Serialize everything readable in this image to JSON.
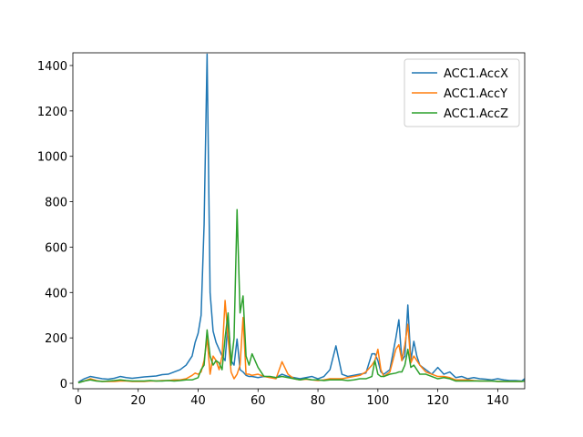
{
  "chart_data": {
    "type": "line",
    "x": [
      0,
      2,
      4,
      6,
      8,
      10,
      12,
      14,
      16,
      18,
      20,
      22,
      24,
      26,
      28,
      30,
      32,
      34,
      36,
      38,
      39,
      40,
      41,
      42,
      43,
      44,
      45,
      46,
      47,
      48,
      49,
      50,
      51,
      52,
      53,
      54,
      55,
      56,
      57,
      58,
      60,
      62,
      64,
      66,
      68,
      70,
      72,
      74,
      76,
      78,
      80,
      82,
      84,
      86,
      88,
      90,
      92,
      94,
      96,
      98,
      99,
      100,
      101,
      102,
      104,
      106,
      107,
      108,
      109,
      110,
      111,
      112,
      113,
      114,
      116,
      118,
      120,
      122,
      124,
      126,
      128,
      130,
      132,
      134,
      136,
      138,
      140,
      142,
      144,
      146,
      148,
      149
    ],
    "series": [
      {
        "name": "ACC1.AccX",
        "color": "#1f77b4",
        "values": [
          5,
          20,
          30,
          25,
          20,
          18,
          22,
          30,
          25,
          22,
          25,
          28,
          30,
          32,
          38,
          40,
          50,
          60,
          80,
          120,
          180,
          220,
          300,
          700,
          1450,
          400,
          230,
          180,
          150,
          120,
          100,
          280,
          100,
          80,
          195,
          60,
          50,
          35,
          30,
          30,
          25,
          30,
          28,
          25,
          40,
          30,
          25,
          20,
          25,
          30,
          20,
          30,
          60,
          165,
          40,
          30,
          35,
          40,
          45,
          130,
          130,
          100,
          50,
          40,
          60,
          200,
          280,
          100,
          120,
          345,
          100,
          185,
          120,
          80,
          60,
          40,
          70,
          40,
          50,
          25,
          30,
          20,
          25,
          20,
          18,
          15,
          20,
          15,
          12,
          12,
          10,
          20
        ]
      },
      {
        "name": "ACC1.AccY",
        "color": "#ff7f0e",
        "values": [
          3,
          10,
          20,
          12,
          8,
          8,
          8,
          10,
          10,
          8,
          8,
          8,
          10,
          10,
          12,
          12,
          15,
          15,
          20,
          35,
          45,
          40,
          50,
          100,
          200,
          40,
          120,
          100,
          60,
          120,
          365,
          200,
          50,
          20,
          40,
          80,
          290,
          40,
          40,
          35,
          40,
          30,
          25,
          20,
          95,
          40,
          20,
          15,
          18,
          15,
          12,
          15,
          20,
          20,
          20,
          25,
          30,
          35,
          50,
          80,
          100,
          150,
          60,
          30,
          50,
          150,
          170,
          100,
          170,
          260,
          90,
          120,
          100,
          80,
          50,
          40,
          30,
          30,
          25,
          15,
          15,
          15,
          12,
          10,
          10,
          10,
          8,
          8,
          8,
          8,
          8,
          10
        ]
      },
      {
        "name": "ACC1.AccZ",
        "color": "#2ca02c",
        "values": [
          2,
          10,
          15,
          10,
          8,
          10,
          12,
          15,
          12,
          10,
          10,
          10,
          12,
          10,
          10,
          12,
          10,
          12,
          15,
          15,
          20,
          25,
          60,
          80,
          235,
          120,
          80,
          100,
          90,
          60,
          200,
          310,
          80,
          200,
          765,
          310,
          385,
          120,
          80,
          130,
          70,
          30,
          30,
          25,
          30,
          25,
          20,
          15,
          20,
          15,
          15,
          12,
          15,
          15,
          15,
          12,
          15,
          20,
          20,
          30,
          100,
          40,
          30,
          30,
          40,
          45,
          50,
          50,
          80,
          150,
          70,
          80,
          60,
          40,
          40,
          30,
          20,
          25,
          20,
          10,
          10,
          10,
          10,
          10,
          10,
          10,
          8,
          8,
          8,
          8,
          8,
          10
        ]
      }
    ],
    "xlim": [
      -1.8,
      149
    ],
    "ylim": [
      -24,
      1456
    ],
    "xticks": [
      0,
      20,
      40,
      60,
      80,
      100,
      120,
      140
    ],
    "yticks": [
      0,
      200,
      400,
      600,
      800,
      1000,
      1200,
      1400
    ],
    "legend": "upper right",
    "grid": false
  }
}
